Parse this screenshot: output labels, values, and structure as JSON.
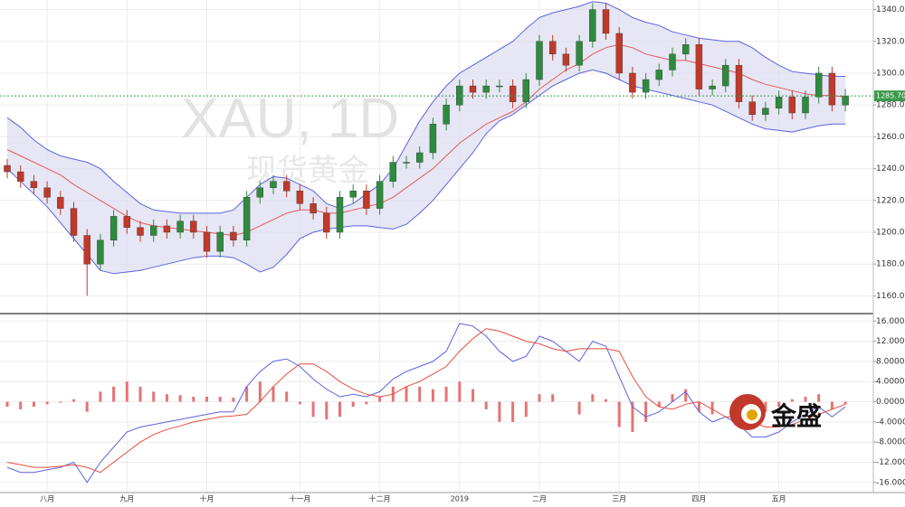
{
  "watermark": {
    "symbol": "XAU, 1D",
    "name": "现货黄金"
  },
  "logo": "金盛",
  "chart_data": [
    {
      "type": "candlestick",
      "categories": [
        null,
        null,
        null,
        "八月",
        null,
        null,
        null,
        null,
        null,
        "九月",
        null,
        null,
        null,
        null,
        null,
        "十月",
        null,
        null,
        null,
        null,
        null,
        null,
        "十一月",
        null,
        null,
        null,
        null,
        null,
        "十二月",
        null,
        null,
        null,
        null,
        null,
        "2019",
        null,
        null,
        null,
        null,
        null,
        "二月",
        null,
        null,
        null,
        null,
        null,
        "三月",
        null,
        null,
        null,
        null,
        null,
        "四月",
        null,
        null,
        null,
        null,
        null,
        "五月",
        null,
        null,
        null,
        null,
        null
      ],
      "open": [
        1242,
        1238,
        1232,
        1228,
        1222,
        1215,
        1198,
        1180,
        1195,
        1210,
        1203,
        1198,
        1204,
        1200,
        1207,
        1200,
        1188,
        1200,
        1195,
        1222,
        1228,
        1232,
        1226,
        1218,
        1212,
        1200,
        1222,
        1226,
        1215,
        1232,
        1244,
        1244,
        1250,
        1268,
        1280,
        1292,
        1288,
        1292,
        1292,
        1282,
        1296,
        1320,
        1312,
        1305,
        1320,
        1340,
        1325,
        1300,
        1288,
        1296,
        1302,
        1312,
        1318,
        1290,
        1292,
        1305,
        1282,
        1274,
        1278,
        1285,
        1275,
        1285,
        1300,
        1280
      ],
      "high": [
        1246,
        1242,
        1236,
        1232,
        1226,
        1219,
        1202,
        1199,
        1214,
        1214,
        1207,
        1208,
        1208,
        1211,
        1211,
        1204,
        1204,
        1204,
        1226,
        1232,
        1236,
        1236,
        1230,
        1222,
        1216,
        1226,
        1230,
        1230,
        1236,
        1248,
        1248,
        1254,
        1272,
        1284,
        1296,
        1296,
        1296,
        1296,
        1296,
        1300,
        1324,
        1324,
        1316,
        1324,
        1344,
        1344,
        1329,
        1304,
        1300,
        1306,
        1316,
        1322,
        1322,
        1296,
        1309,
        1309,
        1286,
        1282,
        1289,
        1289,
        1289,
        1304,
        1304,
        1290
      ],
      "low": [
        1234,
        1228,
        1224,
        1218,
        1211,
        1194,
        1160,
        1176,
        1191,
        1199,
        1194,
        1194,
        1196,
        1196,
        1196,
        1184,
        1184,
        1191,
        1191,
        1218,
        1224,
        1222,
        1214,
        1208,
        1196,
        1196,
        1218,
        1211,
        1211,
        1228,
        1240,
        1240,
        1246,
        1264,
        1276,
        1284,
        1284,
        1288,
        1278,
        1278,
        1292,
        1308,
        1301,
        1301,
        1316,
        1321,
        1296,
        1284,
        1284,
        1292,
        1298,
        1308,
        1286,
        1286,
        1288,
        1278,
        1270,
        1270,
        1274,
        1271,
        1271,
        1281,
        1276,
        1276
      ],
      "close": [
        1238,
        1232,
        1228,
        1222,
        1215,
        1198,
        1180,
        1195,
        1210,
        1203,
        1198,
        1204,
        1200,
        1207,
        1200,
        1188,
        1200,
        1195,
        1222,
        1228,
        1232,
        1226,
        1218,
        1212,
        1200,
        1222,
        1226,
        1215,
        1232,
        1244,
        1244,
        1250,
        1268,
        1280,
        1292,
        1288,
        1292,
        1292,
        1282,
        1296,
        1320,
        1312,
        1305,
        1320,
        1340,
        1325,
        1300,
        1288,
        1296,
        1302,
        1312,
        1318,
        1290,
        1292,
        1305,
        1282,
        1274,
        1278,
        1285,
        1275,
        1285,
        1300,
        1280,
        1285.7
      ],
      "up_color": "#2e8b3e",
      "down_color": "#c0392b",
      "bands": {
        "color": "#5b63e0",
        "fill": "#dcdcf0",
        "upper": [
          1272,
          1266,
          1258,
          1252,
          1248,
          1246,
          1244,
          1240,
          1232,
          1225,
          1218,
          1214,
          1213,
          1212,
          1212,
          1212,
          1212,
          1214,
          1222,
          1230,
          1235,
          1234,
          1230,
          1226,
          1218,
          1215,
          1218,
          1224,
          1230,
          1240,
          1255,
          1270,
          1282,
          1292,
          1300,
          1305,
          1310,
          1315,
          1320,
          1328,
          1335,
          1338,
          1340,
          1342,
          1345,
          1344,
          1340,
          1335,
          1332,
          1330,
          1326,
          1324,
          1322,
          1321,
          1320,
          1320,
          1316,
          1310,
          1305,
          1301,
          1300,
          1299,
          1298,
          1298
        ],
        "lower": [
          1240,
          1232,
          1224,
          1216,
          1206,
          1196,
          1186,
          1176,
          1174,
          1175,
          1176,
          1178,
          1180,
          1182,
          1184,
          1185,
          1185,
          1184,
          1180,
          1175,
          1178,
          1186,
          1196,
          1200,
          1202,
          1203,
          1204,
          1204,
          1203,
          1202,
          1205,
          1212,
          1220,
          1230,
          1240,
          1250,
          1262,
          1270,
          1274,
          1280,
          1286,
          1292,
          1296,
          1300,
          1302,
          1300,
          1296,
          1292,
          1290,
          1288,
          1286,
          1284,
          1282,
          1280,
          1276,
          1272,
          1268,
          1265,
          1264,
          1263,
          1265,
          1267,
          1268,
          1268
        ]
      },
      "moving_average": {
        "color": "#e05a5a",
        "values": [
          1252,
          1248,
          1244,
          1240,
          1236,
          1230,
          1225,
          1220,
          1215,
          1210,
          1206,
          1204,
          1203,
          1202,
          1201,
          1200,
          1199,
          1198,
          1200,
          1204,
          1208,
          1212,
          1214,
          1214,
          1212,
          1212,
          1214,
          1216,
          1218,
          1222,
          1228,
          1234,
          1240,
          1248,
          1256,
          1262,
          1268,
          1272,
          1276,
          1282,
          1290,
          1296,
          1302,
          1306,
          1312,
          1316,
          1318,
          1316,
          1312,
          1310,
          1308,
          1308,
          1306,
          1304,
          1302,
          1300,
          1296,
          1293,
          1291,
          1289,
          1287,
          1286,
          1286,
          1285
        ]
      },
      "ylim": [
        1150,
        1346
      ],
      "yticks": [
        {
          "value": 1160,
          "label": "1160.00"
        },
        {
          "value": 1180,
          "label": "1180.00"
        },
        {
          "value": 1200,
          "label": "1200.00"
        },
        {
          "value": 1220,
          "label": "1220.00"
        },
        {
          "value": 1240,
          "label": "1240.00"
        },
        {
          "value": 1260,
          "label": "1260.00"
        },
        {
          "value": 1280,
          "label": "1280.00"
        },
        {
          "value": 1300,
          "label": "1300.00"
        },
        {
          "value": 1320,
          "label": "1320.00"
        },
        {
          "value": 1340,
          "label": "1340.00"
        }
      ],
      "last_price": {
        "value": 1285.7,
        "label": "1285.70",
        "color": "#3a9a4a"
      },
      "grid": true
    },
    {
      "type": "macd",
      "series": [
        {
          "color": "#5b63e0",
          "values": [
            -13,
            -14,
            -14,
            -13.5,
            -13,
            -12,
            -16,
            -12,
            -9,
            -6,
            -5,
            -4.5,
            -4,
            -3.5,
            -3,
            -2.5,
            -2,
            -2,
            3,
            6,
            8,
            8.5,
            7,
            4.5,
            2.5,
            1,
            1.5,
            1,
            2,
            4.5,
            6,
            7,
            8,
            10,
            15.5,
            15,
            13,
            10,
            8,
            9,
            13,
            12,
            10,
            8,
            12,
            11,
            5,
            -1,
            -3,
            -2,
            0,
            2,
            -2,
            -4,
            -3,
            -4.5,
            -7,
            -7,
            -6,
            -4,
            -2.5,
            -1,
            -3,
            -1
          ]
        },
        {
          "color": "#e74c3c",
          "values": [
            -12,
            -12.5,
            -13,
            -13,
            -12.8,
            -12.5,
            -13,
            -14,
            -12,
            -10,
            -8,
            -6.5,
            -5.5,
            -4.8,
            -4,
            -3.5,
            -3,
            -2.8,
            -2.5,
            0,
            3,
            5.5,
            7.5,
            7.5,
            6,
            4,
            2.5,
            1.5,
            1,
            1.5,
            3,
            4,
            5.5,
            7,
            10,
            12.5,
            14.5,
            14,
            13,
            12,
            11.5,
            10.5,
            10,
            10.5,
            10.5,
            10.5,
            10,
            5,
            1,
            -1,
            -1.5,
            -0.5,
            0,
            -1.5,
            -3,
            -3,
            -4,
            -5,
            -5,
            -4.5,
            -3.5,
            -2.5,
            -1.5,
            -0.5
          ]
        }
      ],
      "histogram": {
        "color": "#e57373",
        "values": [
          -1,
          -1.5,
          -1,
          -0.5,
          -0.2,
          0.5,
          -2,
          2,
          3,
          4,
          3,
          2,
          1.5,
          1.3,
          1,
          1,
          1,
          0.8,
          3,
          4,
          3,
          2,
          -0.5,
          -3,
          -3.5,
          -3,
          -1,
          -0.5,
          1,
          3,
          3,
          3,
          2.5,
          3,
          4,
          2.5,
          -1.5,
          -4,
          -4,
          -3,
          1.5,
          1.5,
          0,
          -2.5,
          1.5,
          0.5,
          -5,
          -6,
          -4,
          -1,
          1.5,
          2.5,
          -2,
          -2.5,
          0,
          -1.5,
          -3,
          -2,
          -1,
          0.5,
          1,
          1.5,
          -1.5,
          -0.5
        ]
      },
      "ylim": [
        -18,
        17.3
      ],
      "yticks": [
        {
          "value": -16,
          "label": "-16.0000"
        },
        {
          "value": -12,
          "label": "-12.0000"
        },
        {
          "value": -8,
          "label": "-8.0000"
        },
        {
          "value": -4,
          "label": "-4.0000"
        },
        {
          "value": 0,
          "label": "0.0000"
        },
        {
          "value": 4,
          "label": "4.0000"
        },
        {
          "value": 8,
          "label": "8.0000"
        },
        {
          "value": 12,
          "label": "12.0000"
        },
        {
          "value": 16,
          "label": "16.0000"
        }
      ],
      "grid": true
    }
  ]
}
